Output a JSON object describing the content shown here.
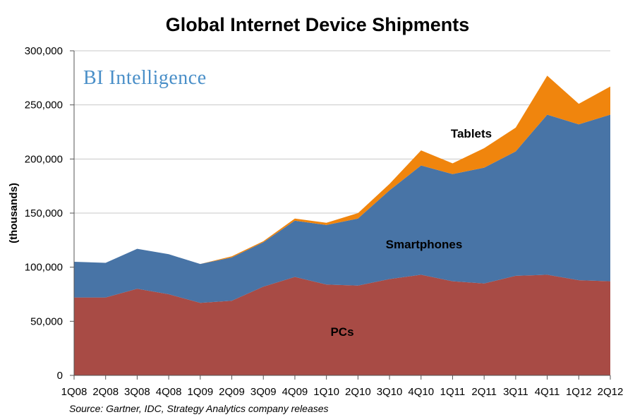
{
  "chart_data": {
    "type": "area",
    "stacked": true,
    "title": "Global Internet Device Shipments",
    "ylabel": "(thousands)",
    "xlabel": "",
    "brand": "BI Intelligence",
    "source": "Source: Gartner, IDC, Strategy Analytics company releases",
    "ylim": [
      0,
      300000
    ],
    "yticks": [
      0,
      50000,
      100000,
      150000,
      200000,
      250000,
      300000
    ],
    "ytick_labels": [
      "0",
      "50,000",
      "100,000",
      "150,000",
      "200,000",
      "250,000",
      "300,000"
    ],
    "grid": true,
    "categories": [
      "1Q08",
      "2Q08",
      "3Q08",
      "4Q08",
      "1Q09",
      "2Q09",
      "3Q09",
      "4Q09",
      "1Q10",
      "2Q10",
      "3Q10",
      "4Q10",
      "1Q11",
      "2Q11",
      "3Q11",
      "4Q11",
      "1Q12",
      "2Q12"
    ],
    "series": [
      {
        "name": "PCs",
        "color": "#a84b45",
        "values": [
          72000,
          72000,
          80000,
          75000,
          67000,
          69000,
          82000,
          91000,
          84000,
          83000,
          89000,
          93000,
          87000,
          85000,
          92000,
          93000,
          88000,
          87000
        ]
      },
      {
        "name": "Smartphones",
        "color": "#4874a6",
        "values": [
          33000,
          32000,
          37000,
          37000,
          36000,
          40000,
          41000,
          52000,
          55000,
          62000,
          82000,
          101000,
          99000,
          107000,
          115000,
          148000,
          144000,
          154000
        ]
      },
      {
        "name": "Tablets",
        "color": "#f0850d",
        "values": [
          0,
          0,
          0,
          0,
          0,
          1000,
          1000,
          2000,
          2000,
          5000,
          6000,
          14000,
          10000,
          18000,
          22000,
          36000,
          19000,
          26000
        ]
      }
    ]
  }
}
